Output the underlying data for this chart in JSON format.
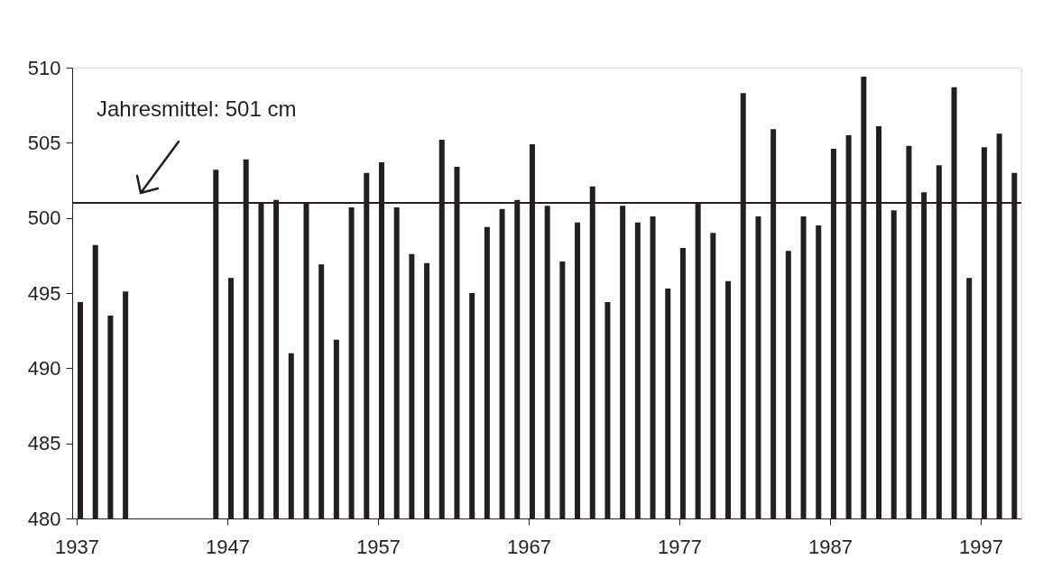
{
  "chart_data": {
    "type": "bar",
    "x": [
      1937,
      1938,
      1939,
      1940,
      1946,
      1947,
      1948,
      1949,
      1950,
      1951,
      1952,
      1953,
      1954,
      1955,
      1956,
      1957,
      1958,
      1959,
      1960,
      1961,
      1962,
      1963,
      1964,
      1965,
      1966,
      1967,
      1968,
      1969,
      1970,
      1971,
      1972,
      1973,
      1974,
      1975,
      1976,
      1977,
      1978,
      1979,
      1980,
      1981,
      1982,
      1983,
      1984,
      1985,
      1986,
      1987,
      1988,
      1989,
      1990,
      1991,
      1992,
      1993,
      1994,
      1995,
      1996,
      1997,
      1998,
      1999
    ],
    "values": [
      494.4,
      498.2,
      493.5,
      495.1,
      503.2,
      496.0,
      503.9,
      501.0,
      501.2,
      491.0,
      501.0,
      496.9,
      491.9,
      500.7,
      503.0,
      503.7,
      500.7,
      497.6,
      497.0,
      505.2,
      503.4,
      495.0,
      499.4,
      500.6,
      501.2,
      504.9,
      500.8,
      497.1,
      499.7,
      502.1,
      494.4,
      500.8,
      499.7,
      500.1,
      495.3,
      498.0,
      501.0,
      499.0,
      495.8,
      508.3,
      500.1,
      505.9,
      497.8,
      500.1,
      499.5,
      504.6,
      505.5,
      509.4,
      506.1,
      500.5,
      504.8,
      501.7,
      503.5,
      508.7,
      496.0,
      504.7,
      505.6,
      503.0
    ],
    "color": "#231f20",
    "xlim": [
      1937,
      1999.4
    ],
    "xticks": [
      1937,
      1947,
      1957,
      1967,
      1977,
      1987,
      1997
    ],
    "ylim": [
      480,
      510
    ],
    "yticks": [
      480,
      485,
      490,
      495,
      500,
      505,
      510
    ],
    "ref_lines": [
      {
        "axis": "y",
        "value": 501,
        "label": "Jahresmittel: 501 cm",
        "color": "#231f20"
      }
    ],
    "grid": false
  }
}
